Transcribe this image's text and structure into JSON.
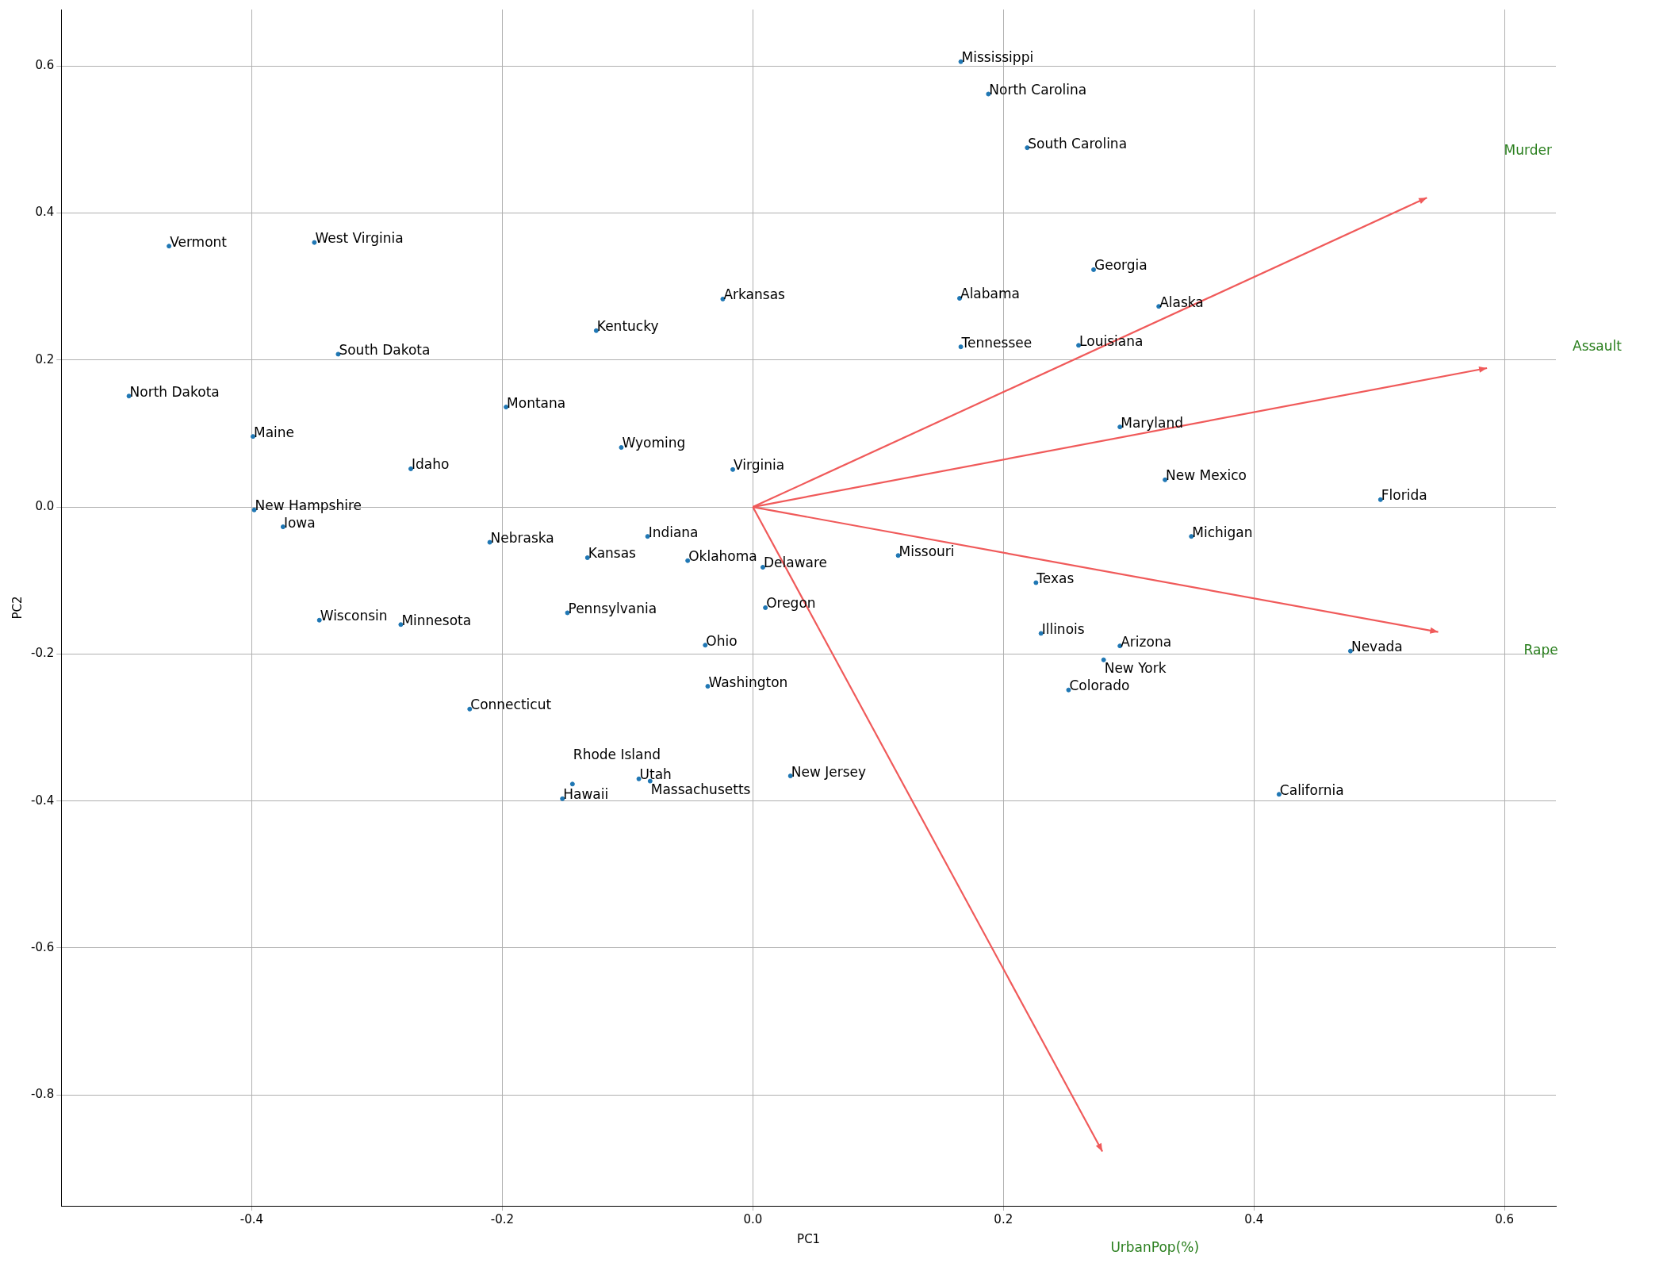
{
  "chart_data": {
    "type": "scatter",
    "xlabel": "PC1",
    "ylabel": "PC2",
    "xlim": [
      -0.552,
      0.641
    ],
    "ylim": [
      -0.951,
      0.677
    ],
    "xticks": [
      -0.4,
      -0.2,
      {
        "value": 0,
        "label": "0.0"
      },
      0.2,
      0.4,
      0.6
    ],
    "yticks": [
      -0.8,
      -0.6,
      -0.4,
      -0.2,
      {
        "value": 0,
        "label": "0.0"
      },
      0.2,
      0.4,
      0.6
    ],
    "grid": true,
    "legend": false,
    "marker": "circle",
    "series": [
      {
        "color": "#1f77b4",
        "x": [
          0.166,
          0.188,
          0.219,
          -0.466,
          -0.35,
          0.272,
          0.165,
          -0.024,
          0.324,
          -0.125,
          0.166,
          0.26,
          -0.331,
          -0.498,
          -0.197,
          -0.399,
          0.293,
          -0.105,
          -0.273,
          -0.016,
          0.329,
          0.501,
          -0.398,
          -0.375,
          0.35,
          -0.084,
          -0.21,
          -0.132,
          0.116,
          -0.052,
          0.008,
          0.226,
          0.01,
          -0.148,
          -0.346,
          -0.281,
          0.23,
          0.293,
          0.477,
          -0.038,
          0.28,
          -0.036,
          0.252,
          -0.226,
          0.03,
          -0.091,
          -0.082,
          -0.144,
          0.42,
          -0.152
        ],
        "values": [
          0.606,
          0.562,
          0.489,
          0.355,
          0.36,
          0.323,
          0.284,
          0.283,
          0.273,
          0.24,
          0.218,
          0.22,
          0.208,
          0.151,
          0.136,
          0.096,
          0.109,
          0.081,
          0.052,
          0.051,
          0.037,
          0.01,
          -0.004,
          -0.027,
          -0.04,
          -0.04,
          -0.048,
          -0.069,
          -0.066,
          -0.073,
          -0.082,
          -0.103,
          -0.137,
          -0.144,
          -0.154,
          -0.16,
          -0.172,
          -0.189,
          -0.196,
          -0.188,
          -0.208,
          -0.244,
          -0.249,
          -0.275,
          -0.366,
          -0.37,
          -0.373,
          -0.377,
          -0.391,
          -0.397
        ],
        "value_labels": [
          "Mississippi",
          "North Carolina",
          "South Carolina",
          "Vermont",
          "West Virginia",
          "Georgia",
          "Alabama",
          "Arkansas",
          "Alaska",
          "Kentucky",
          "Tennessee",
          "Louisiana",
          "South Dakota",
          "North Dakota",
          "Montana",
          "Maine",
          "Maryland",
          "Wyoming",
          "Idaho",
          "Virginia",
          "New Mexico",
          "Florida",
          "New Hampshire",
          "Iowa",
          "Michigan",
          "Indiana",
          "Nebraska",
          "Kansas",
          "Missouri",
          "Oklahoma",
          "Delaware",
          "Texas",
          "Oregon",
          "Pennsylvania",
          "Wisconsin",
          "Minnesota",
          "Illinois",
          "Arizona",
          "Nevada",
          "Ohio",
          "New York",
          "Washington",
          "Colorado",
          "Connecticut",
          "New Jersey",
          "Utah",
          "Massachusetts",
          "Rhode Island",
          "California",
          "Hawaii"
        ]
      },
      {
        "type": "line",
        "name": "Murder",
        "marker": "triangle",
        "color": "#f05a5a",
        "x": [
          0,
          0.538
        ],
        "values": [
          0,
          0.421
        ]
      },
      {
        "type": "line",
        "name": "Assault",
        "marker": "triangle",
        "color": "#f05a5a",
        "x": [
          0,
          0.586
        ],
        "values": [
          0,
          0.189
        ]
      },
      {
        "type": "line",
        "name": "Rape",
        "marker": "triangle",
        "color": "#f05a5a",
        "x": [
          0,
          0.547
        ],
        "values": [
          0,
          -0.17
        ]
      },
      {
        "type": "line",
        "name": "UrbanPop(%)",
        "marker": "triangle",
        "color": "#f05a5a",
        "x": [
          0,
          0.279
        ],
        "values": [
          0,
          -0.877
        ]
      }
    ]
  }
}
